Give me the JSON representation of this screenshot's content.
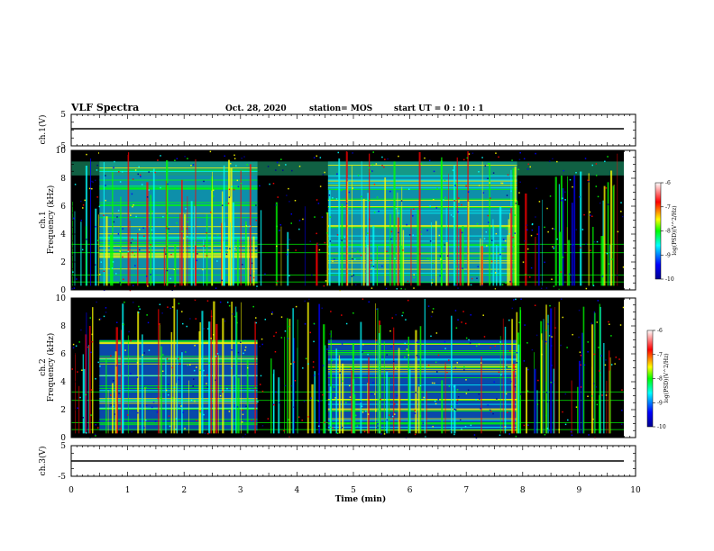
{
  "header": {
    "title": "VLF Spectra",
    "date": "Oct. 28, 2020",
    "station": "station= MOS",
    "start": "start UT =  0 : 10 : 1"
  },
  "chart_data": [
    {
      "type": "line",
      "panel": "ch1_voltage",
      "ylabel": "ch.1(V)",
      "ylim": [
        -5,
        5
      ],
      "yticks": [
        "5",
        "-5"
      ],
      "x": [
        0,
        9.8
      ],
      "values": [
        0,
        0
      ]
    },
    {
      "type": "heatmap",
      "panel": "ch1_spectrogram",
      "ylabel": "ch.1\nFrequency (kHz)",
      "ylim": [
        0,
        10
      ],
      "yticks": [
        "0",
        "2",
        "4",
        "6",
        "8",
        "10"
      ],
      "xlim": [
        0,
        10
      ],
      "colorbar": {
        "label": "log(PSD)(V^2/Hz)",
        "ticks": [
          "-6",
          "-7",
          "-8",
          "-9",
          "-10"
        ],
        "range": [
          -10,
          -6
        ]
      },
      "active_intervals_min": [
        [
          0.5,
          3.3
        ],
        [
          4.55,
          7.9
        ]
      ]
    },
    {
      "type": "heatmap",
      "panel": "ch2_spectrogram",
      "ylabel": "ch.2\nFrequency (kHz)",
      "ylim": [
        0,
        10
      ],
      "yticks": [
        "0",
        "2",
        "4",
        "6",
        "8",
        "10"
      ],
      "xlim": [
        0,
        10
      ],
      "colorbar": {
        "label": "log(PSD)(V^2/Hz)",
        "ticks": [
          "-6",
          "-7",
          "-8",
          "-9",
          "-10"
        ],
        "range": [
          -10,
          -6
        ]
      },
      "active_intervals_min": [
        [
          0.5,
          3.3
        ],
        [
          4.55,
          7.9
        ]
      ]
    },
    {
      "type": "line",
      "panel": "ch3_voltage",
      "ylabel": "ch.3(V)",
      "ylim": [
        -5,
        5
      ],
      "yticks": [
        "5",
        "-5"
      ],
      "x": [
        0,
        9.8
      ],
      "values": [
        0,
        0
      ]
    }
  ],
  "xaxis": {
    "label": "Time (min)",
    "ticks": [
      "0",
      "1",
      "2",
      "3",
      "4",
      "5",
      "6",
      "7",
      "8",
      "9",
      "10"
    ]
  },
  "colors": {
    "background": "#000000",
    "colormap": [
      "#00008f",
      "#0000ff",
      "#00ffff",
      "#00ff00",
      "#ffff00",
      "#ff0000",
      "#ffffff"
    ]
  }
}
